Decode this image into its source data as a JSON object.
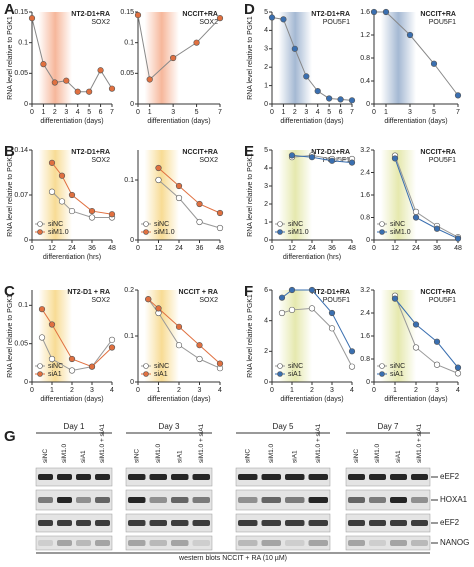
{
  "panels": [
    "A",
    "B",
    "C",
    "D",
    "E",
    "F",
    "G"
  ],
  "chart_data": [
    {
      "type": "line",
      "title": "NT2-D1+RA",
      "subtitle": "SOX2",
      "ylabel": "RNA level relative to PGK1",
      "xlabel": "differentiation (days)",
      "x": [
        0,
        1,
        2,
        3,
        4,
        5,
        6,
        7
      ],
      "values": [
        0.14,
        0.065,
        0.035,
        0.038,
        0.02,
        0.02,
        0.055,
        0.025
      ],
      "color": "#e07040",
      "xlim": [
        0,
        7
      ],
      "xticks": [
        0,
        1,
        2,
        3,
        4,
        5,
        6,
        7
      ],
      "ylim": [
        0,
        0.15
      ],
      "yticks": [
        0,
        0.05,
        0.1,
        0.15
      ]
    },
    {
      "type": "line",
      "title": "NCCIT+RA",
      "subtitle": "SOX2",
      "xlabel": "differentiation (days)",
      "x": [
        0,
        1,
        3,
        5,
        7
      ],
      "values": [
        0.145,
        0.04,
        0.075,
        0.1,
        0.14
      ],
      "color": "#e07040",
      "xlim": [
        0,
        7
      ],
      "xticks": [
        0,
        1,
        3,
        5,
        7
      ],
      "ylim": [
        0,
        0.15
      ],
      "yticks": [
        0,
        0.05,
        0.1,
        0.15
      ]
    },
    {
      "type": "line",
      "title": "NT2-D1+RA",
      "subtitle": "SOX2",
      "ylabel": "RNA level relative to PGK1",
      "xlabel": "differentiation (hrs)",
      "x": [
        12,
        18,
        24,
        36,
        48
      ],
      "series": [
        {
          "name": "siNC",
          "color": "#ffffff",
          "values": [
            0.075,
            0.06,
            0.045,
            0.035,
            0.035
          ]
        },
        {
          "name": "siM1.0",
          "color": "#e07040",
          "values": [
            0.12,
            0.1,
            0.07,
            0.045,
            0.04
          ]
        }
      ],
      "xlim": [
        0,
        48
      ],
      "xticks": [
        0,
        12,
        24,
        36,
        48
      ],
      "ylim": [
        0,
        0.14
      ],
      "yticks": [
        0,
        0.07,
        0.14
      ]
    },
    {
      "type": "line",
      "title": "NCCIT+RA",
      "subtitle": "SOX2",
      "x": [
        12,
        24,
        36,
        48
      ],
      "series": [
        {
          "name": "siNC",
          "color": "#ffffff",
          "values": [
            0.1,
            0.07,
            0.03,
            0.02
          ]
        },
        {
          "name": "siM1.0",
          "color": "#e07040",
          "values": [
            0.12,
            0.09,
            0.06,
            0.045
          ]
        }
      ],
      "xlim": [
        0,
        48
      ],
      "xticks": [
        0,
        12,
        24,
        36,
        48
      ],
      "ylim": [
        0,
        0.15
      ],
      "yticks": [
        0,
        0.1
      ]
    },
    {
      "type": "line",
      "title": "NT2-D1 + RA",
      "subtitle": "SOX2",
      "ylabel": "RNA level relative to PGK1",
      "xlabel": "differentiation (days)",
      "x": [
        0.5,
        1,
        2,
        3,
        4
      ],
      "series": [
        {
          "name": "siNC",
          "color": "#ffffff",
          "values": [
            0.058,
            0.03,
            0.015,
            0.02,
            0.055
          ]
        },
        {
          "name": "siA1",
          "color": "#e07040",
          "values": [
            0.095,
            0.075,
            0.03,
            0.02,
            0.045
          ]
        }
      ],
      "xlim": [
        0,
        4
      ],
      "xticks": [
        0,
        1,
        2,
        3,
        4
      ],
      "ylim": [
        0,
        0.12
      ],
      "yticks": [
        0,
        0.05,
        0.1
      ]
    },
    {
      "type": "line",
      "title": "NCCIT + RA",
      "subtitle": "SOX2",
      "xlabel": "differentiation (days)",
      "x": [
        0.5,
        1,
        2,
        3,
        4
      ],
      "series": [
        {
          "name": "siNC",
          "color": "#ffffff",
          "values": [
            0.18,
            0.15,
            0.08,
            0.05,
            0.03
          ]
        },
        {
          "name": "siA1",
          "color": "#e07040",
          "values": [
            0.18,
            0.16,
            0.12,
            0.08,
            0.04
          ]
        }
      ],
      "xlim": [
        0,
        4
      ],
      "xticks": [
        0,
        1,
        2,
        3,
        4
      ],
      "ylim": [
        0,
        0.2
      ],
      "yticks": [
        0,
        0.1,
        0.2
      ]
    },
    {
      "type": "line",
      "title": "NT2-D1+RA",
      "subtitle": "POU5F1",
      "ylabel": "RNA level relative to PGK1",
      "xlabel": "differentiation (days)",
      "x": [
        0,
        1,
        2,
        3,
        4,
        5,
        6,
        7
      ],
      "values": [
        4.7,
        4.6,
        3.0,
        1.5,
        0.7,
        0.3,
        0.25,
        0.2
      ],
      "color": "#3a6fb0",
      "xlim": [
        0,
        7
      ],
      "xticks": [
        0,
        1,
        2,
        3,
        4,
        5,
        6,
        7
      ],
      "ylim": [
        0,
        5
      ],
      "yticks": [
        0,
        1,
        2,
        3,
        4,
        5
      ]
    },
    {
      "type": "line",
      "title": "NCCIT+RA",
      "subtitle": "POU5F1",
      "xlabel": "differentiation (days)",
      "x": [
        0,
        1,
        3,
        5,
        7
      ],
      "values": [
        1.6,
        1.6,
        1.2,
        0.7,
        0.15
      ],
      "color": "#3a6fb0",
      "xlim": [
        0,
        7
      ],
      "xticks": [
        0,
        1,
        3,
        5,
        7
      ],
      "ylim": [
        0,
        1.6
      ],
      "yticks": [
        0,
        0.4,
        0.8,
        1.2,
        1.6
      ]
    },
    {
      "type": "line",
      "title": "NT2-D1+RA",
      "subtitle": "POU5F1",
      "ylabel": "RNA level relative to PGK1",
      "xlabel": "differentiation (hrs)",
      "x": [
        12,
        24,
        36,
        48
      ],
      "series": [
        {
          "name": "siNC",
          "color": "#ffffff",
          "values": [
            4.6,
            4.7,
            4.5,
            4.5
          ]
        },
        {
          "name": "siM1.0",
          "color": "#3a6fb0",
          "values": [
            4.7,
            4.6,
            4.4,
            4.3
          ]
        }
      ],
      "xlim": [
        0,
        48
      ],
      "xticks": [
        0,
        12,
        24,
        36,
        48
      ],
      "ylim": [
        0,
        5
      ],
      "yticks": [
        0,
        1,
        2,
        3,
        4,
        5
      ]
    },
    {
      "type": "line",
      "title": "NCCIT+RA",
      "subtitle": "POU5F1",
      "x": [
        12,
        24,
        36,
        48
      ],
      "series": [
        {
          "name": "siNC",
          "color": "#ffffff",
          "values": [
            3.0,
            1.0,
            0.5,
            0.1
          ]
        },
        {
          "name": "siM1.0",
          "color": "#3a6fb0",
          "values": [
            2.9,
            0.8,
            0.4,
            0.05
          ]
        }
      ],
      "xlim": [
        0,
        48
      ],
      "xticks": [
        0,
        12,
        24,
        36,
        48
      ],
      "ylim": [
        0,
        3.2
      ],
      "yticks": [
        0,
        0.8,
        1.6,
        2.4,
        3.2
      ]
    },
    {
      "type": "line",
      "title": "NT2-D1+RA",
      "subtitle": "POU5F1",
      "ylabel": "RNA level relative to PGK1",
      "xlabel": "differentiation (days)",
      "x": [
        0.5,
        1,
        2,
        3,
        4
      ],
      "series": [
        {
          "name": "siNC",
          "color": "#ffffff",
          "values": [
            4.5,
            4.7,
            4.8,
            3.5,
            1.0
          ]
        },
        {
          "name": "siA1",
          "color": "#3a6fb0",
          "values": [
            5.5,
            6.0,
            6.0,
            4.5,
            2.0
          ]
        }
      ],
      "xlim": [
        0,
        4
      ],
      "xticks": [
        0,
        1,
        2,
        3,
        4
      ],
      "ylim": [
        0,
        6
      ],
      "yticks": [
        0,
        2,
        4,
        6
      ]
    },
    {
      "type": "line",
      "title": "NCCIT+RA",
      "subtitle": "POU5F1",
      "xlabel": "differentiation (days)",
      "x": [
        1,
        2,
        3,
        4
      ],
      "series": [
        {
          "name": "siNC",
          "color": "#ffffff",
          "values": [
            3.0,
            1.2,
            0.6,
            0.3
          ]
        },
        {
          "name": "siA1",
          "color": "#3a6fb0",
          "values": [
            2.9,
            2.0,
            1.4,
            0.5
          ]
        }
      ],
      "xlim": [
        0,
        4
      ],
      "xticks": [
        0,
        1,
        2,
        3,
        4
      ],
      "ylim": [
        0,
        3.2
      ],
      "yticks": [
        0,
        0.8,
        1.6,
        2.4,
        3.2
      ]
    }
  ],
  "blot": {
    "days": [
      "Day 1",
      "Day 3",
      "Day 5",
      "Day 7"
    ],
    "lanes": [
      "siNC",
      "siM1.0",
      "siA1",
      "siM1.0 + siA1"
    ],
    "rows": [
      "eEF2",
      "HOXA1",
      "eEF2",
      "NANOG"
    ],
    "caption": "western blots NCCIT + RA (10 µM)"
  }
}
